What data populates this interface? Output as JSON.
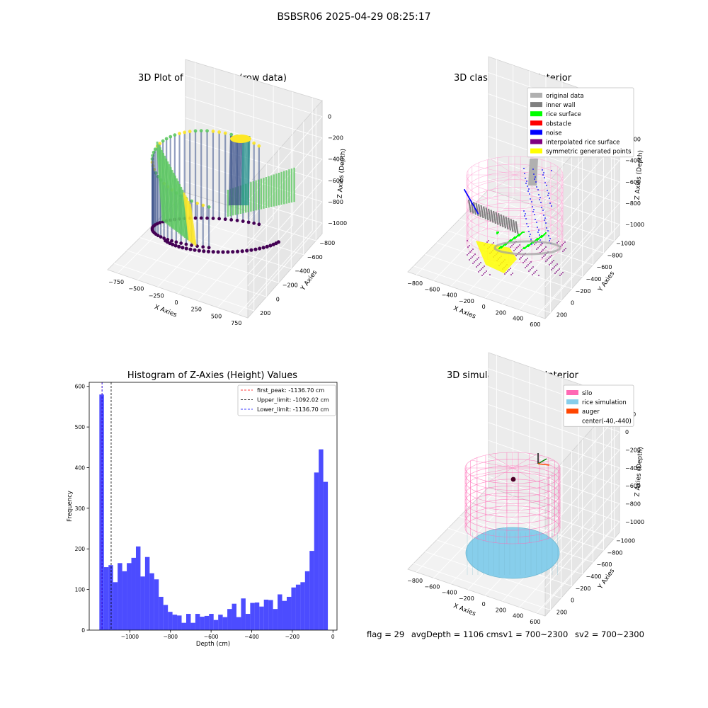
{
  "suptitle": "BSBSR06 2025-04-29 08:25:17",
  "panels": {
    "raw": {
      "title": "3D Plot of Silo Interior(row data)",
      "xlabel": "X Axies",
      "ylabel": "Y Axies",
      "zlabel": "Z Axies (Depth)",
      "xticks": [
        "−750",
        "−500",
        "−250",
        "0",
        "250",
        "500",
        "750"
      ],
      "yticks": [
        "200",
        "0",
        "−200",
        "−400",
        "−600",
        "−800"
      ],
      "zticks": [
        "0",
        "−200",
        "−400",
        "−600",
        "−800",
        "−1000"
      ],
      "colormap": [
        "#440154",
        "#3b528b",
        "#21918c",
        "#5ec962",
        "#fde725"
      ]
    },
    "classify": {
      "title": "3D classify of Silo Interior",
      "xlabel": "X Axies",
      "ylabel": "Y Axies",
      "zlabel": "Z Axies (Depth)",
      "xticks": [
        "−800",
        "−600",
        "−400",
        "−200",
        "0",
        "200",
        "400",
        "600"
      ],
      "yticks": [
        "200",
        "0",
        "−200",
        "−400",
        "−600",
        "−800",
        "−1000"
      ],
      "zticks": [
        "0",
        "−200",
        "−400",
        "−600",
        "−800",
        "−1000"
      ],
      "legend": [
        {
          "label": "original data",
          "color": "#b0b0b0"
        },
        {
          "label": "inner wall",
          "color": "#808080"
        },
        {
          "label": "rice surface",
          "color": "#00ff00"
        },
        {
          "label": "obstacle",
          "color": "#ff0000"
        },
        {
          "label": "noise",
          "color": "#0000ff"
        },
        {
          "label": "interpolated rice surface",
          "color": "#800080"
        },
        {
          "label": "symmetric generated points",
          "color": "#ffff00"
        }
      ]
    },
    "hist": {
      "title": "Histogram of Z-Axies (Height) Values",
      "xlabel": "Depth (cm)",
      "ylabel": "Frequency"
    },
    "sim": {
      "title": "3D simulation of Silo Interior",
      "xlabel": "X Axies",
      "ylabel": "Y Axies",
      "zlabel": "Z Axies (Depth)",
      "xticks": [
        "−800",
        "−600",
        "−400",
        "−200",
        "0",
        "200",
        "400",
        "600"
      ],
      "yticks": [
        "200",
        "0",
        "−200",
        "−400",
        "−600",
        "−800",
        "−1000"
      ],
      "zticks": [
        "200",
        "0",
        "−200",
        "−400",
        "−600",
        "−800",
        "−1000"
      ],
      "legend": [
        {
          "label": "silo",
          "color": "#ff69b4"
        },
        {
          "label": "rice simulation",
          "color": "#87ceeb"
        },
        {
          "label": "auger",
          "color": "#ff4500"
        },
        {
          "label": "center(-40,-440)",
          "color": ""
        }
      ]
    }
  },
  "chart_data": {
    "type": "bar",
    "title": "Histogram of Z-Axies (Height) Values",
    "xlabel": "Depth (cm)",
    "ylabel": "Frequency",
    "xlim": [
      -1200,
      20
    ],
    "ylim": [
      0,
      610
    ],
    "xticks": [
      -1000,
      -800,
      -600,
      -400,
      -200,
      0
    ],
    "xticklabels": [
      "−1000",
      "−800",
      "−600",
      "−400",
      "−200",
      "0"
    ],
    "yticks": [
      0,
      100,
      200,
      300,
      400,
      500,
      600
    ],
    "bin_start": -1150,
    "bin_width": 22.5,
    "values": [
      580,
      155,
      160,
      118,
      165,
      145,
      165,
      178,
      206,
      132,
      180,
      140,
      125,
      82,
      62,
      45,
      38,
      36,
      18,
      40,
      18,
      40,
      33,
      35,
      40,
      25,
      38,
      32,
      52,
      65,
      32,
      78,
      40,
      67,
      68,
      58,
      75,
      74,
      52,
      88,
      72,
      82,
      105,
      112,
      118,
      145,
      195,
      388,
      445,
      365
    ],
    "color": "#0000ff",
    "vlines": [
      {
        "label": "first_peak: -1136.70 cm",
        "x": -1136.7,
        "color": "#ff0000"
      },
      {
        "label": "Upper_limit: -1092.02 cm",
        "x": -1092.02,
        "color": "#000000"
      },
      {
        "label": "Lower_limit: -1136.70 cm",
        "x": -1136.7,
        "color": "#0000ff"
      }
    ],
    "legend_position": "top-right"
  },
  "footer": {
    "flag": "flag = 29",
    "avg": "avgDepth = 1106 cm",
    "sv1": "sv1 = 700~2300",
    "sv2": "sv2 = 700~2300"
  }
}
